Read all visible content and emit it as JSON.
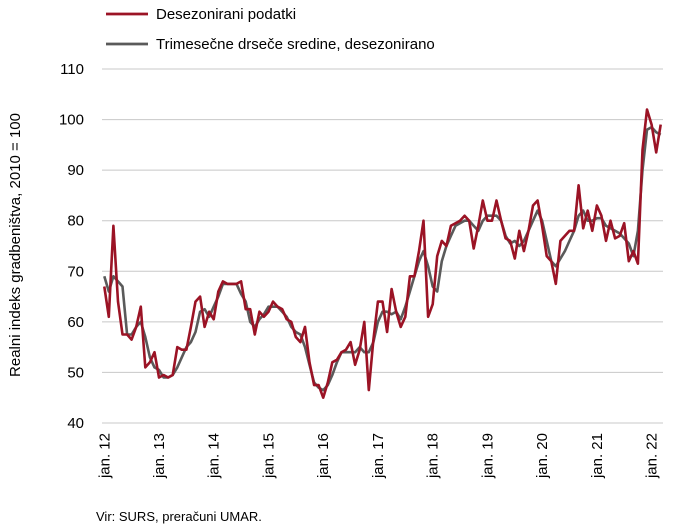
{
  "chart_data": {
    "type": "line",
    "title": "",
    "ylabel": "Realni indeks gradbeništva, 2010 = 100",
    "xlabel": "",
    "ylim": [
      40,
      110
    ],
    "yticks": [
      40,
      50,
      60,
      70,
      80,
      90,
      100,
      110
    ],
    "grid": "horizontal",
    "legend_position": "top",
    "x_start": "jan. 12",
    "x_tick_labels": [
      "jan. 12",
      "jan. 13",
      "jan. 14",
      "jan. 15",
      "jan. 16",
      "jan. 17",
      "jan. 18",
      "jan. 19",
      "jan. 20",
      "jan. 21",
      "jan. 22"
    ],
    "source": "Vir: SURS, preračuni UMAR.",
    "series": [
      {
        "name": "Desezonirani podatki",
        "color": "#9b1325",
        "values": [
          67,
          61,
          79,
          64,
          57.5,
          57.5,
          56.5,
          59,
          63,
          51,
          52,
          54,
          49,
          49.5,
          49,
          49.5,
          55,
          54.5,
          54.5,
          59,
          64,
          65,
          59,
          62,
          60.5,
          66,
          68,
          67.5,
          67.5,
          67.5,
          68,
          62.5,
          62.5,
          57.5,
          62,
          61,
          62,
          64,
          63,
          62.5,
          60.5,
          60,
          57,
          56,
          59,
          52,
          47.5,
          47.5,
          45,
          48,
          52,
          52.5,
          54,
          54.5,
          56,
          51.5,
          54.5,
          60,
          46.5,
          56.5,
          64,
          64,
          58,
          66.5,
          62,
          59,
          61,
          69,
          69,
          74,
          80,
          61,
          63.5,
          73,
          76,
          75,
          79,
          79.5,
          80,
          81,
          80,
          74.5,
          79,
          84,
          80,
          80,
          84,
          80,
          76.5,
          76,
          72.5,
          78,
          74,
          78,
          83,
          84,
          79,
          73,
          72,
          67.5,
          76,
          77,
          78,
          78,
          87,
          78.5,
          82,
          78,
          83,
          81,
          76,
          80,
          76.5,
          77,
          79.5,
          72,
          74,
          71.5,
          94,
          102,
          99,
          93.5,
          99
        ]
      },
      {
        "name": "Trimesečne drseče sredine, desezonirano",
        "color": "#5a5a5a",
        "values": [
          69,
          66,
          69,
          68,
          67,
          57.5,
          57.5,
          59,
          60,
          57,
          53,
          51,
          50.5,
          49,
          49,
          49.5,
          51,
          53,
          55,
          56,
          58,
          62,
          62.5,
          61,
          63,
          65,
          67.5,
          67.5,
          67.5,
          67.5,
          65.5,
          64,
          60,
          59,
          60.5,
          61.5,
          63,
          63,
          63,
          62,
          61,
          59,
          58,
          57.5,
          55,
          51.5,
          48,
          47,
          46.5,
          47.5,
          49.5,
          52,
          54,
          54,
          54,
          54,
          55,
          54,
          54,
          56,
          60,
          62,
          62,
          61.5,
          62,
          60.5,
          63,
          66,
          69,
          72,
          74,
          71,
          67,
          66,
          72,
          75,
          77,
          79,
          79.5,
          80,
          80,
          79,
          78,
          80,
          81,
          81,
          81,
          80,
          77,
          75.5,
          76,
          75,
          76,
          78,
          80,
          82,
          80,
          76,
          72,
          71,
          72.5,
          74,
          76,
          78,
          81,
          82,
          80,
          80,
          80.5,
          80.5,
          79,
          78.5,
          78,
          77.5,
          76.5,
          75.5,
          73,
          78,
          90,
          98,
          98.5,
          97.5,
          97
        ]
      }
    ]
  }
}
